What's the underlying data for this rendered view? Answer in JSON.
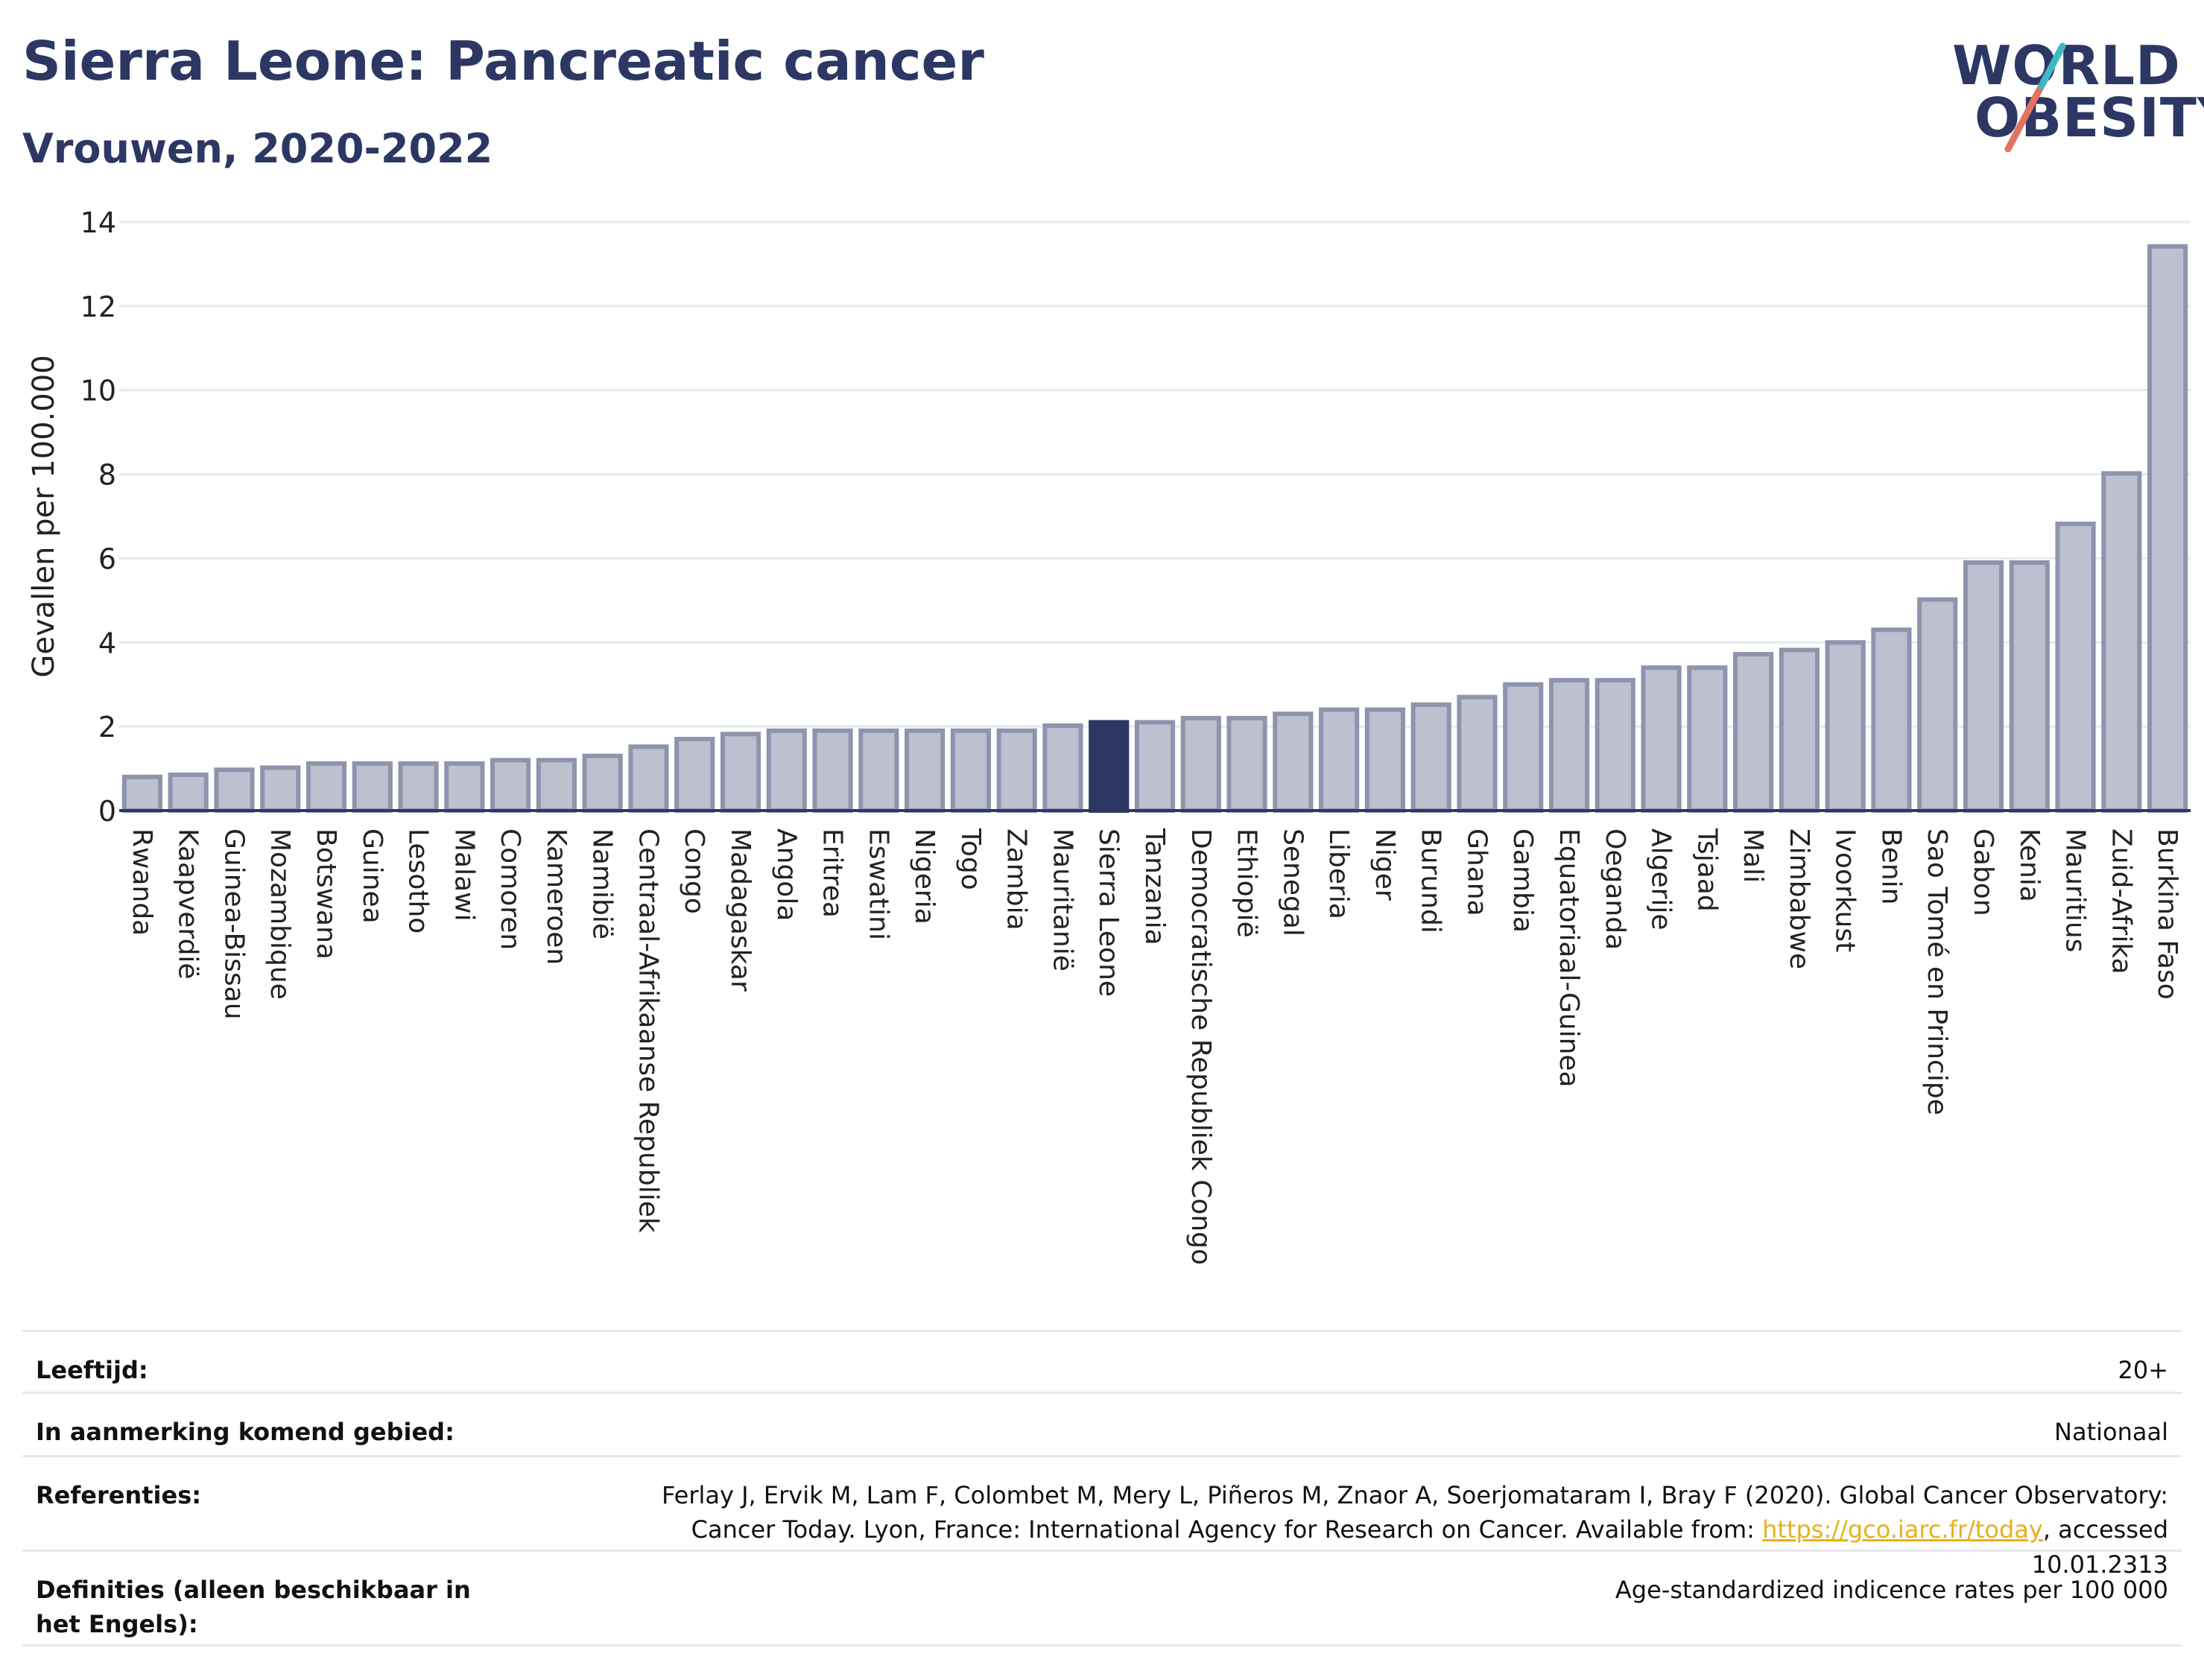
{
  "header": {
    "title": "Sierra Leone: Pancreatic cancer",
    "subtitle": "Vrouwen, 2020-2022"
  },
  "logo": {
    "line1": "WORLD",
    "line2": "OBESITY",
    "colors": {
      "text": "#2c3763",
      "slash_top": "#3fb8c4",
      "slash_bottom": "#e2735f"
    }
  },
  "chart_data": {
    "type": "bar",
    "ylabel": "Gevallen per 100.000",
    "xlabel": "",
    "ylim": [
      0,
      14
    ],
    "yticks": [
      0,
      2,
      4,
      6,
      8,
      10,
      12,
      14
    ],
    "grid": true,
    "highlight": "Sierra Leone",
    "colors": {
      "bar": "#bcc0cf",
      "bar_edge": "#8f94ad",
      "highlight": "#2c3763",
      "grid": "#e6e9f1"
    },
    "categories": [
      "Rwanda",
      "Kaapverdië",
      "Guinea-Bissau",
      "Mozambique",
      "Botswana",
      "Guinea",
      "Lesotho",
      "Malawi",
      "Comoren",
      "Kameroen",
      "Namibië",
      "Centraal-Afrikaanse Republiek",
      "Congo",
      "Madagaskar",
      "Angola",
      "Eritrea",
      "Eswatini",
      "Nigeria",
      "Togo",
      "Zambia",
      "Mauritanië",
      "Sierra Leone",
      "Tanzania",
      "Democratische Republiek Congo",
      "Ethiopië",
      "Senegal",
      "Liberia",
      "Niger",
      "Burundi",
      "Ghana",
      "Gambia",
      "Equatoriaal-Guinea",
      "Oeganda",
      "Algerije",
      "Tsjaad",
      "Mali",
      "Zimbabwe",
      "Ivoorkust",
      "Benin",
      "Sao Tomé en Principe",
      "Gabon",
      "Kenia",
      "Mauritius",
      "Zuid-Afrika",
      "Burkina Faso"
    ],
    "values": [
      0.8,
      0.85,
      0.97,
      1.02,
      1.12,
      1.12,
      1.12,
      1.12,
      1.2,
      1.2,
      1.3,
      1.52,
      1.7,
      1.82,
      1.9,
      1.9,
      1.9,
      1.9,
      1.9,
      1.9,
      2.02,
      2.1,
      2.1,
      2.2,
      2.2,
      2.3,
      2.4,
      2.4,
      2.52,
      2.7,
      3.0,
      3.1,
      3.1,
      3.4,
      3.4,
      3.72,
      3.82,
      4.0,
      4.3,
      5.02,
      5.9,
      5.9,
      6.82,
      8.02,
      13.42
    ]
  },
  "meta": {
    "age_label": "Leeftijd:",
    "age_value": "20+",
    "area_label": "In aanmerking komend gebied:",
    "area_value": "Nationaal",
    "ref_label": "Referenties:",
    "ref_text_1": "Ferlay J, Ervik M, Lam F, Colombet M, Mery L, Piñeros M, Znaor A, Soerjomataram I, Bray F (2020). Global Cancer Observatory: Cancer Today. Lyon, France: International Agency for Research on Cancer. Available from: ",
    "ref_link": "https://gco.iarc.fr/today",
    "ref_text_2": ", accessed 10.01.2313",
    "def_label": "Definities (alleen beschikbaar in het Engels):",
    "def_value": "Age-standardized indicence rates per 100 000"
  }
}
